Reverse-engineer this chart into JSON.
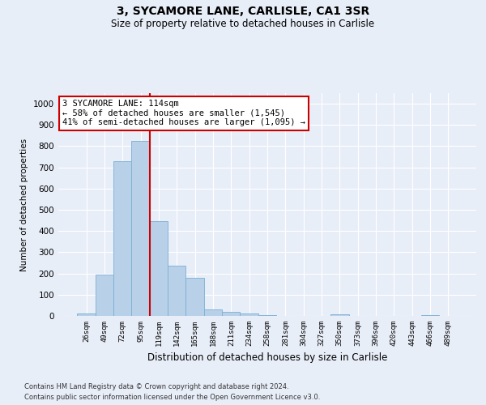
{
  "title_line1": "3, SYCAMORE LANE, CARLISLE, CA1 3SR",
  "title_line2": "Size of property relative to detached houses in Carlisle",
  "xlabel": "Distribution of detached houses by size in Carlisle",
  "ylabel": "Number of detached properties",
  "categories": [
    "26sqm",
    "49sqm",
    "72sqm",
    "95sqm",
    "119sqm",
    "142sqm",
    "165sqm",
    "188sqm",
    "211sqm",
    "234sqm",
    "258sqm",
    "281sqm",
    "304sqm",
    "327sqm",
    "350sqm",
    "373sqm",
    "396sqm",
    "420sqm",
    "443sqm",
    "466sqm",
    "489sqm"
  ],
  "values": [
    12,
    195,
    730,
    825,
    445,
    235,
    180,
    30,
    18,
    12,
    5,
    0,
    0,
    0,
    8,
    0,
    0,
    0,
    0,
    5,
    0
  ],
  "bar_color": "#b8d0e8",
  "bar_edge_color": "#7bafd4",
  "property_label": "3 SYCAMORE LANE: 114sqm",
  "annotation_line2": "← 58% of detached houses are smaller (1,545)",
  "annotation_line3": "41% of semi-detached houses are larger (1,095) →",
  "vline_color": "#cc0000",
  "vline_position": 3.5,
  "ylim": [
    0,
    1050
  ],
  "yticks": [
    0,
    100,
    200,
    300,
    400,
    500,
    600,
    700,
    800,
    900,
    1000
  ],
  "annotation_box_color": "#ffffff",
  "annotation_box_edge": "#cc0000",
  "footer_line1": "Contains HM Land Registry data © Crown copyright and database right 2024.",
  "footer_line2": "Contains public sector information licensed under the Open Government Licence v3.0.",
  "background_color": "#e8eef8",
  "grid_color": "#ffffff"
}
